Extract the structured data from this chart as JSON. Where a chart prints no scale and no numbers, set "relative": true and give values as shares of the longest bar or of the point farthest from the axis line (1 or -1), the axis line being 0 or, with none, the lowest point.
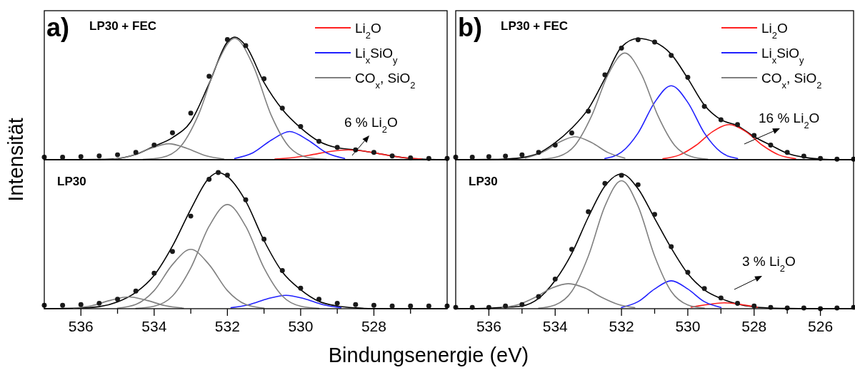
{
  "chart_data": [
    {
      "type": "line",
      "title": "a)",
      "subtitle": "LP30 + FEC",
      "ylabel": "Intensität",
      "relative": true,
      "xlim": [
        537,
        526
      ],
      "tick_labels": false,
      "grid": false,
      "legend": "top right",
      "annotations": [
        "6 % Li$_{2}$O"
      ],
      "series": [
        {
          "type": "scatter",
          "marker": "circle",
          "color": "#1a1a1a",
          "x": [
            537,
            536.5,
            536,
            535.5,
            535,
            534.5,
            534,
            533.5,
            533,
            532.5,
            532,
            531.5,
            531,
            530.5,
            530,
            529.5,
            529,
            528.5,
            528,
            527.5,
            527,
            526.5,
            526
          ],
          "values": [
            0.02,
            0.02,
            0.025,
            0.03,
            0.04,
            0.06,
            0.12,
            0.22,
            0.38,
            0.68,
            0.98,
            0.93,
            0.66,
            0.42,
            0.27,
            0.15,
            0.1,
            0.08,
            0.06,
            0.03,
            0.015,
            0.01,
            0.01
          ]
        },
        {
          "color": "#000000",
          "x": [
            537,
            536.5,
            536,
            535.5,
            535,
            534.5,
            534,
            533.5,
            533,
            532.5,
            532,
            531.8,
            531.5,
            531,
            530.5,
            530,
            529.5,
            529,
            528.5,
            528,
            527.5,
            527,
            526.5,
            526
          ],
          "values": [
            0,
            0,
            0.001,
            0.002,
            0.009,
            0.043,
            0.11,
            0.18,
            0.31,
            0.62,
            0.96,
            1.0,
            0.93,
            0.63,
            0.41,
            0.26,
            0.15,
            0.097,
            0.08,
            0.057,
            0.03,
            0.011,
            0.003,
            0.001
          ]
        },
        {
          "name": "Li$_{2}$O",
          "color": "#ff2020",
          "x": [
            530.7,
            530.2,
            529.7,
            529.2,
            528.7,
            528.2,
            527.7,
            527.2,
            526.7
          ],
          "values": [
            0.005,
            0.017,
            0.04,
            0.067,
            0.08,
            0.067,
            0.04,
            0.017,
            0.005
          ]
        },
        {
          "name": "Li$_{x}$SiO$_{y}$",
          "color": "#2020ff",
          "x": [
            531.8,
            531.3,
            530.8,
            530.3,
            529.8,
            529.3,
            528.8
          ],
          "values": [
            0.01,
            0.057,
            0.16,
            0.23,
            0.16,
            0.057,
            0.01
          ]
        },
        {
          "name": "CO$_{x}$, SiO$_{2}$",
          "color": "#808080",
          "x": [
            534.3,
            533.8,
            533.3,
            532.8,
            532.3,
            531.8,
            531.3,
            530.8,
            530.3,
            529.8,
            529.3
          ],
          "values": [
            0.002,
            0.017,
            0.1,
            0.36,
            0.77,
            0.99,
            0.77,
            0.36,
            0.1,
            0.017,
            0.002
          ]
        },
        {
          "color": "#808080",
          "x": [
            535.1,
            534.6,
            534.1,
            533.6,
            533.1,
            532.6,
            532.1
          ],
          "values": [
            0.006,
            0.033,
            0.092,
            0.13,
            0.092,
            0.033,
            0.006
          ]
        }
      ]
    },
    {
      "type": "line",
      "subtitle": "LP30",
      "relative": true,
      "xlim": [
        537,
        526
      ],
      "xticks": [
        {
          "value": 536,
          "label": "536"
        },
        {
          "value": 535,
          "label": null
        },
        {
          "value": 534,
          "label": "534"
        },
        {
          "value": 533,
          "label": null
        },
        {
          "value": 532,
          "label": "532"
        },
        {
          "value": 531,
          "label": null
        },
        {
          "value": 530,
          "label": "530"
        },
        {
          "value": 529,
          "label": null
        },
        {
          "value": 528,
          "label": "528"
        },
        {
          "value": 527,
          "label": null
        }
      ],
      "tick_labels": "x",
      "grid": false,
      "series": [
        {
          "type": "scatter",
          "marker": "circle",
          "color": "#1a1a1a",
          "x": [
            537,
            536.5,
            536,
            535.5,
            535,
            534.5,
            534,
            533.5,
            533,
            532.5,
            532.25,
            532,
            531.5,
            531,
            530.5,
            530,
            529.5,
            529,
            528.5,
            528,
            527.5,
            527,
            526.5,
            526
          ],
          "values": [
            0.025,
            0.025,
            0.03,
            0.04,
            0.07,
            0.13,
            0.26,
            0.42,
            0.68,
            0.95,
            1.0,
            0.98,
            0.8,
            0.51,
            0.28,
            0.15,
            0.07,
            0.04,
            0.03,
            0.025,
            0.02,
            0.02,
            0.02,
            0.02
          ]
        },
        {
          "color": "#000000",
          "x": [
            537,
            536.5,
            536,
            535.5,
            535,
            534.5,
            534,
            533.5,
            533,
            532.5,
            532.25,
            532,
            531.5,
            531,
            530.5,
            530,
            529.5,
            529,
            528.5,
            528,
            527,
            526
          ],
          "values": [
            0,
            0.002,
            0.005,
            0.015,
            0.05,
            0.12,
            0.245,
            0.46,
            0.73,
            0.96,
            1.0,
            0.97,
            0.79,
            0.5,
            0.27,
            0.14,
            0.054,
            0.02,
            0.006,
            0.001,
            0,
            0
          ]
        },
        {
          "color": "#2020ff",
          "x": [
            531.9,
            531.4,
            530.9,
            530.4,
            529.9,
            529.4,
            528.9
          ],
          "values": [
            0.007,
            0.03,
            0.073,
            0.098,
            0.073,
            0.03,
            0.007
          ]
        },
        {
          "color": "#808080",
          "x": [
            534.5,
            534,
            533.5,
            533,
            532.5,
            532,
            531.5,
            531,
            530.5,
            530,
            529.5
          ],
          "values": [
            0.002,
            0.018,
            0.093,
            0.299,
            0.605,
            0.765,
            0.605,
            0.299,
            0.093,
            0.018,
            0.002
          ]
        },
        {
          "color": "#808080",
          "x": [
            535,
            534.5,
            534,
            533.5,
            533,
            532.5,
            532,
            531.5,
            531
          ],
          "values": [
            0.004,
            0.031,
            0.133,
            0.324,
            0.436,
            0.324,
            0.133,
            0.031,
            0.004
          ]
        },
        {
          "color": "#808080",
          "x": [
            536.2,
            535.7,
            535.2,
            534.7,
            534.2,
            533.7,
            533.2
          ],
          "values": [
            0.004,
            0.022,
            0.061,
            0.086,
            0.061,
            0.022,
            0.004
          ]
        }
      ]
    },
    {
      "type": "line",
      "title": "b)",
      "subtitle": "LP30 + FEC",
      "relative": true,
      "xlim": [
        537,
        525
      ],
      "tick_labels": false,
      "grid": false,
      "legend": "top right",
      "annotations": [
        "16 % Li$_{2}$O"
      ],
      "series": [
        {
          "type": "scatter",
          "marker": "circle",
          "color": "#1a1a1a",
          "x": [
            537,
            536.5,
            536,
            535.5,
            535,
            534.5,
            534,
            533.5,
            533,
            532.5,
            532,
            531.5,
            531,
            530.5,
            530,
            529.5,
            529,
            528.5,
            528,
            527.5,
            527,
            526.5,
            526,
            525.5,
            525
          ],
          "values": [
            0.02,
            0.02,
            0.025,
            0.03,
            0.04,
            0.06,
            0.12,
            0.22,
            0.4,
            0.7,
            0.92,
            0.99,
            0.97,
            0.86,
            0.68,
            0.44,
            0.33,
            0.29,
            0.2,
            0.12,
            0.06,
            0.03,
            0.01,
            0.005,
            0.005
          ]
        },
        {
          "color": "#000000",
          "x": [
            537,
            536.5,
            536,
            535.5,
            535,
            534.5,
            534,
            533.5,
            533,
            532.5,
            532,
            531.5,
            531,
            530.5,
            530,
            529.5,
            529,
            528.5,
            528,
            527.5,
            527,
            526.5,
            526,
            525.5,
            525
          ],
          "values": [
            0,
            0.001,
            0.002,
            0.006,
            0.017,
            0.053,
            0.14,
            0.26,
            0.42,
            0.67,
            0.93,
            1.0,
            0.97,
            0.87,
            0.67,
            0.45,
            0.33,
            0.28,
            0.19,
            0.12,
            0.053,
            0.02,
            0.006,
            0,
            0
          ]
        },
        {
          "name": "Li$_{2}$O",
          "color": "#ff2020",
          "x": [
            530.75,
            530.25,
            529.75,
            529.25,
            528.75,
            528.25,
            527.75,
            527.25,
            526.75
          ],
          "values": [
            0.008,
            0.039,
            0.119,
            0.232,
            0.29,
            0.232,
            0.119,
            0.039,
            0.008
          ]
        },
        {
          "name": "Li$_{x}$SiO$_{y}$",
          "color": "#2020ff",
          "x": [
            532.5,
            532,
            531.5,
            531,
            530.5,
            530,
            529.5,
            529,
            528.5
          ],
          "values": [
            0.01,
            0.062,
            0.22,
            0.473,
            0.61,
            0.473,
            0.22,
            0.062,
            0.01
          ]
        },
        {
          "name": "CO$_{x}$, SiO$_{2}$",
          "color": "#808080",
          "x": [
            534.4,
            533.9,
            533.4,
            532.9,
            532.4,
            531.9,
            531.4,
            530.9,
            530.4,
            529.9,
            529.4
          ],
          "values": [
            0.0035,
            0.026,
            0.119,
            0.362,
            0.705,
            0.88,
            0.705,
            0.362,
            0.119,
            0.026,
            0.0035
          ]
        },
        {
          "color": "#808080",
          "x": [
            534.9,
            534.4,
            533.9,
            533.4,
            532.9,
            532.4,
            531.9
          ],
          "values": [
            0.013,
            0.058,
            0.141,
            0.19,
            0.141,
            0.058,
            0.013
          ]
        }
      ]
    },
    {
      "type": "line",
      "subtitle": "LP30",
      "xlabel": "Bindungsenergie (eV)",
      "relative": true,
      "xlim": [
        537,
        525
      ],
      "xticks": [
        {
          "value": 536,
          "label": "536"
        },
        {
          "value": 535,
          "label": null
        },
        {
          "value": 534,
          "label": "534"
        },
        {
          "value": 533,
          "label": null
        },
        {
          "value": 532,
          "label": "532"
        },
        {
          "value": 531,
          "label": null
        },
        {
          "value": 530,
          "label": "530"
        },
        {
          "value": 529,
          "label": null
        },
        {
          "value": 528,
          "label": "528"
        },
        {
          "value": 527,
          "label": null
        },
        {
          "value": 526,
          "label": "526"
        }
      ],
      "tick_labels": "x",
      "grid": false,
      "annotations": [
        "3 % Li$_{2}$O"
      ],
      "series": [
        {
          "type": "scatter",
          "marker": "circle",
          "color": "#1a1a1a",
          "x": [
            537,
            536.5,
            536,
            535.5,
            535,
            534.5,
            534,
            533.5,
            533,
            532.5,
            532,
            531.5,
            531,
            530.5,
            530,
            529.5,
            529,
            528.5,
            528,
            527.5,
            527,
            526.5,
            526,
            525.5,
            525
          ],
          "values": [
            0.01,
            0.01,
            0.01,
            0.02,
            0.03,
            0.09,
            0.22,
            0.44,
            0.72,
            0.93,
            0.99,
            0.92,
            0.7,
            0.46,
            0.27,
            0.15,
            0.08,
            0.04,
            0.02,
            0.01,
            0.005,
            0.005,
            0,
            0.005,
            0.01
          ]
        },
        {
          "color": "#000000",
          "x": [
            537,
            536.5,
            536,
            535.5,
            535,
            534.5,
            534,
            533.5,
            533,
            532.5,
            532,
            531.5,
            531,
            530.5,
            530,
            529.5,
            529,
            528.5,
            528,
            527.5,
            527,
            526.5,
            526,
            525.5,
            525
          ],
          "values": [
            0,
            0.001,
            0.004,
            0.01,
            0.02,
            0.076,
            0.21,
            0.41,
            0.68,
            0.91,
            1.0,
            0.89,
            0.67,
            0.45,
            0.26,
            0.14,
            0.076,
            0.034,
            0.013,
            0.005,
            0.002,
            0.001,
            0,
            0,
            0
          ]
        },
        {
          "color": "#ff2020",
          "x": [
            529.9,
            529.4,
            528.9,
            528.4,
            527.9
          ],
          "values": [
            0.011,
            0.031,
            0.044,
            0.031,
            0.011
          ]
        },
        {
          "color": "#2020ff",
          "x": [
            532,
            531.5,
            531,
            530.5,
            530,
            529.5,
            529
          ],
          "values": [
            0.009,
            0.052,
            0.146,
            0.207,
            0.146,
            0.052,
            0.009
          ]
        },
        {
          "color": "#808080",
          "x": [
            534.5,
            534,
            533.5,
            533,
            532.5,
            532,
            531.5,
            531,
            530.5,
            530,
            529.5
          ],
          "values": [
            0.004,
            0.028,
            0.128,
            0.39,
            0.761,
            0.95,
            0.761,
            0.39,
            0.128,
            0.028,
            0.004
          ]
        },
        {
          "color": "#808080",
          "x": [
            535.6,
            535.1,
            534.6,
            534.1,
            533.6,
            533.1,
            532.6,
            532.1,
            531.6
          ],
          "values": [
            0.008,
            0.032,
            0.085,
            0.153,
            0.186,
            0.153,
            0.085,
            0.032,
            0.008
          ]
        }
      ]
    }
  ]
}
